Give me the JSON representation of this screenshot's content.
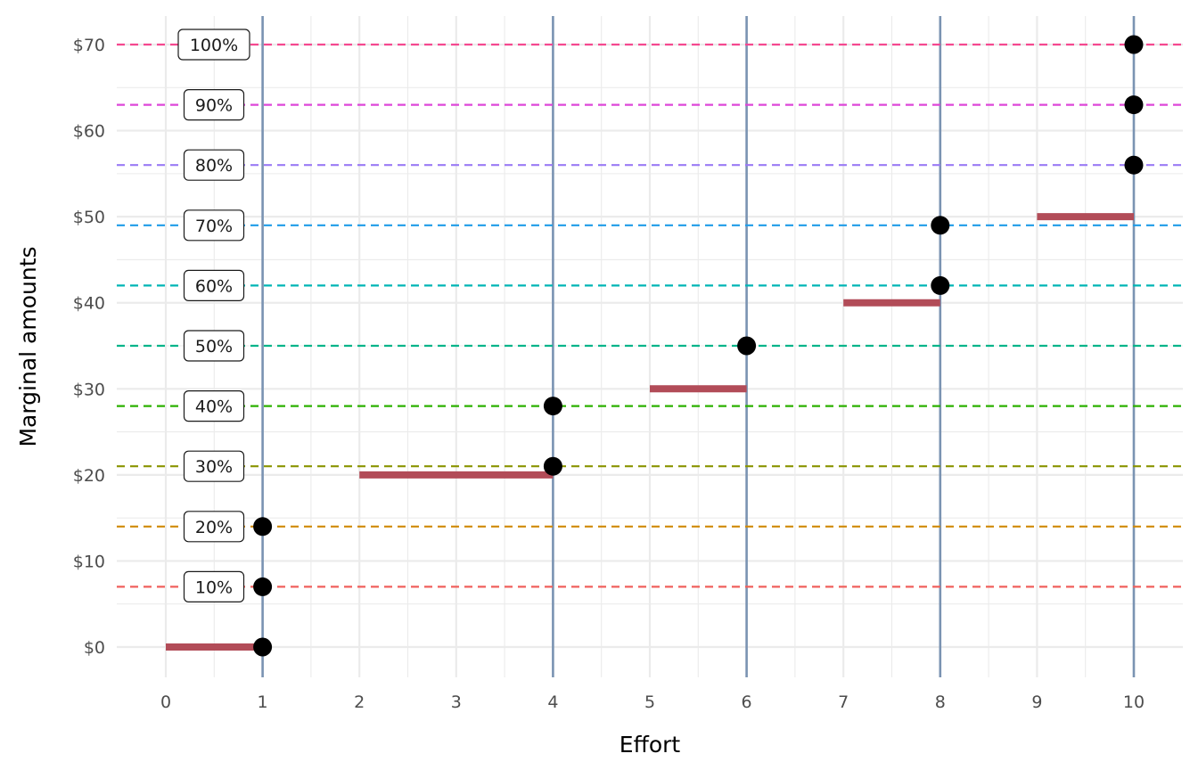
{
  "chart_data": {
    "type": "line",
    "xlabel": "Effort",
    "ylabel": "Marginal amounts",
    "xlim": [
      0,
      10
    ],
    "ylim": [
      0,
      70
    ],
    "x_ticks": [
      "0",
      "1",
      "2",
      "3",
      "4",
      "5",
      "6",
      "7",
      "8",
      "9",
      "10"
    ],
    "y_ticks": [
      "$0",
      "$10",
      "$20",
      "$30",
      "$40",
      "$50",
      "$60",
      "$70"
    ],
    "grid": true,
    "threshold_lines": [
      {
        "label": "10%",
        "y": 7,
        "color": "#f0605d"
      },
      {
        "label": "20%",
        "y": 14,
        "color": "#d08a00"
      },
      {
        "label": "30%",
        "y": 21,
        "color": "#8a9400"
      },
      {
        "label": "40%",
        "y": 28,
        "color": "#2cb000"
      },
      {
        "label": "50%",
        "y": 35,
        "color": "#00b48a"
      },
      {
        "label": "60%",
        "y": 42,
        "color": "#00b5b5"
      },
      {
        "label": "70%",
        "y": 49,
        "color": "#1f9ce8"
      },
      {
        "label": "80%",
        "y": 56,
        "color": "#9a7bf5"
      },
      {
        "label": "90%",
        "y": 63,
        "color": "#dd47d8"
      },
      {
        "label": "100%",
        "y": 70,
        "color": "#f5488f"
      }
    ],
    "vertical_lines": [
      1,
      4,
      6,
      8,
      10
    ],
    "vertical_line_color": "#7a93b2",
    "segments": [
      {
        "x_start": 0,
        "x_end": 1,
        "y": 0
      },
      {
        "x_start": 2,
        "x_end": 4,
        "y": 20
      },
      {
        "x_start": 5,
        "x_end": 6,
        "y": 30
      },
      {
        "x_start": 7,
        "x_end": 8,
        "y": 40
      },
      {
        "x_start": 9,
        "x_end": 10,
        "y": 50
      }
    ],
    "segment_color": "#b24c58",
    "points": [
      {
        "x": 1,
        "y": 0
      },
      {
        "x": 1,
        "y": 7
      },
      {
        "x": 1,
        "y": 14
      },
      {
        "x": 4,
        "y": 21
      },
      {
        "x": 4,
        "y": 28
      },
      {
        "x": 6,
        "y": 35
      },
      {
        "x": 8,
        "y": 42
      },
      {
        "x": 8,
        "y": 49
      },
      {
        "x": 10,
        "y": 56
      },
      {
        "x": 10,
        "y": 63
      },
      {
        "x": 10,
        "y": 70
      }
    ],
    "point_color": "#000000"
  }
}
